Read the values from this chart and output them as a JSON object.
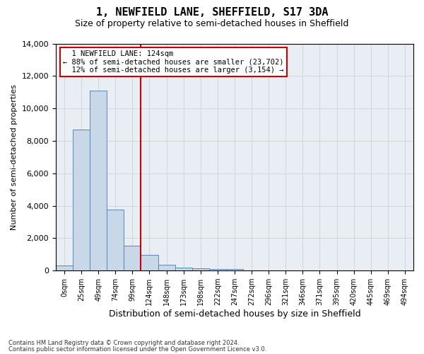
{
  "title": "1, NEWFIELD LANE, SHEFFIELD, S17 3DA",
  "subtitle": "Size of property relative to semi-detached houses in Sheffield",
  "xlabel": "Distribution of semi-detached houses by size in Sheffield",
  "ylabel": "Number of semi-detached properties",
  "property_label": "1 NEWFIELD LANE: 124sqm",
  "pct_smaller": 88,
  "pct_larger": 12,
  "count_smaller": 23702,
  "count_larger": 3154,
  "bin_labels": [
    "0sqm",
    "25sqm",
    "49sqm",
    "74sqm",
    "99sqm",
    "124sqm",
    "148sqm",
    "173sqm",
    "198sqm",
    "222sqm",
    "247sqm",
    "272sqm",
    "296sqm",
    "321sqm",
    "346sqm",
    "371sqm",
    "395sqm",
    "420sqm",
    "445sqm",
    "469sqm",
    "494sqm"
  ],
  "bar_heights": [
    300,
    8700,
    11100,
    3750,
    1550,
    950,
    350,
    200,
    150,
    100,
    100,
    0,
    0,
    0,
    0,
    0,
    0,
    0,
    0,
    0,
    0
  ],
  "bar_color": "#c8d8e8",
  "bar_edge_color": "#5588bb",
  "vline_color": "#cc0000",
  "vline_bin_index": 5,
  "annotation_box_color": "#cc0000",
  "grid_color": "#cccccc",
  "background_color": "#e8eef4",
  "ylim": [
    0,
    14000
  ],
  "yticks": [
    0,
    2000,
    4000,
    6000,
    8000,
    10000,
    12000,
    14000
  ],
  "footer_line1": "Contains HM Land Registry data © Crown copyright and database right 2024.",
  "footer_line2": "Contains public sector information licensed under the Open Government Licence v3.0."
}
